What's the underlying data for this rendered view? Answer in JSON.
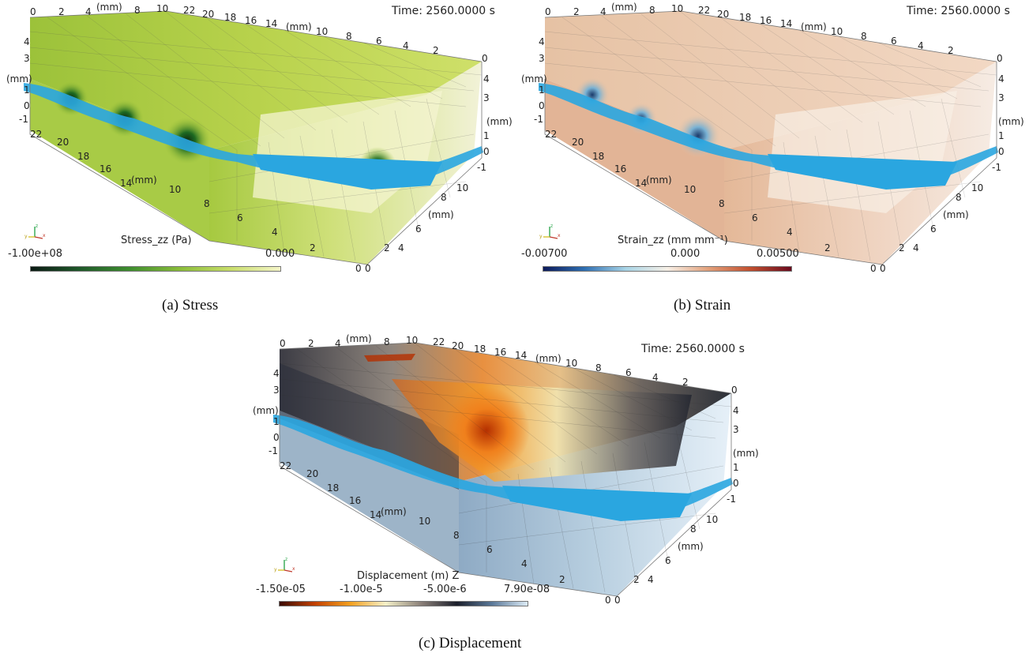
{
  "panels": [
    {
      "id": "a",
      "time": "Time: 2560.0000 s",
      "colorbar": {
        "title": "Stress_zz (Pa)",
        "ticks": [
          "-1.00e+08",
          "0.000"
        ],
        "colors": [
          "#0b1a14",
          "#1f5a2a",
          "#3f8f2e",
          "#8bbd3a",
          "#c8dd6a",
          "#f4f4c8"
        ]
      },
      "caption": "(a) Stress",
      "face_colors": {
        "top": "#b6cf4a",
        "front": "#cfe07a",
        "side": "#c8da66",
        "dark": "#1e4a12"
      }
    },
    {
      "id": "b",
      "time": "Time: 2560.0000 s",
      "colorbar": {
        "title": "Strain_zz (mm mm⁻¹)",
        "ticks": [
          "-0.00700",
          "0.000",
          "0.00500"
        ],
        "colors": [
          "#0c1a5a",
          "#2f6fb2",
          "#a8d4e6",
          "#f6efe6",
          "#e2a07a",
          "#c2502f",
          "#6a0a1e"
        ]
      },
      "caption": "(b) Strain",
      "face_colors": {
        "top": "#efcfb2",
        "front": "#e8bfa0",
        "side": "#e3b69a",
        "dark": "#2f6f9a"
      }
    },
    {
      "id": "c",
      "time": "Time: 2560.0000 s",
      "colorbar": {
        "title": "Displacement (m) Z",
        "ticks": [
          "-1.50e-05",
          "-1.00e-5",
          "-5.00e-6",
          "7.90e-08"
        ],
        "colors": [
          "#3a0a00",
          "#c24000",
          "#f2a020",
          "#f4f0c8",
          "#8a7f78",
          "#1a1e2a",
          "#5a7898",
          "#dcebf6"
        ]
      },
      "caption": "(c) Displacement",
      "face_colors": {
        "top": "#4a4a50",
        "front": "#9fb6cc",
        "side": "#3a4452",
        "dark": "#e25a10"
      }
    }
  ],
  "axis_labels": {
    "unit": "(mm)",
    "x_top": [
      "0",
      "2",
      "4",
      "8",
      "10",
      "22",
      "20",
      "18",
      "16",
      "14",
      "10",
      "8",
      "6",
      "4",
      "2",
      "0"
    ],
    "z_left": [
      "4",
      "3",
      "1",
      "0",
      "-1"
    ],
    "y_left": [
      "22",
      "20",
      "18",
      "16",
      "14",
      "10",
      "8",
      "6",
      "4",
      "2",
      "0"
    ],
    "z_right": [
      "4",
      "3",
      "1",
      "0",
      "-1"
    ],
    "y_right": [
      "10",
      "8",
      "6",
      "4",
      "2",
      "0"
    ]
  },
  "triad": {
    "z": "z",
    "y": "y",
    "x": "x"
  },
  "fracture_color": "#2aa6e0"
}
